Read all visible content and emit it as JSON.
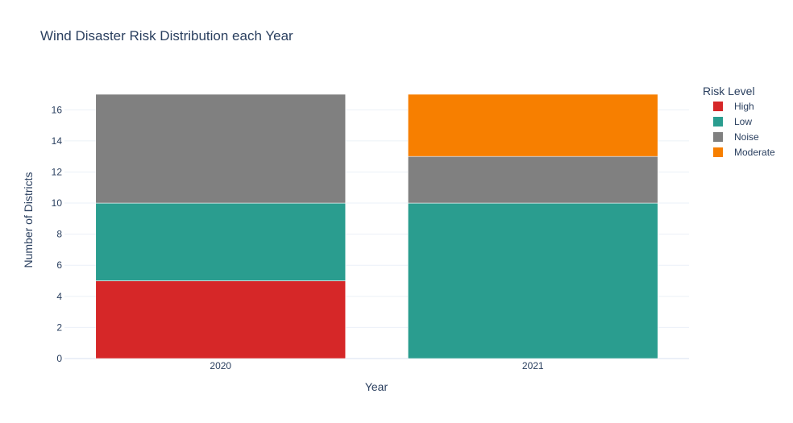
{
  "chart_data": {
    "type": "bar",
    "barmode": "stack",
    "title": "Wind Disaster Risk Distribution each Year",
    "xlabel": "Year",
    "ylabel": "Number of Districts",
    "categories": [
      "2020",
      "2021"
    ],
    "ylim": [
      0,
      17
    ],
    "yticks": [
      0,
      2,
      4,
      6,
      8,
      10,
      12,
      14,
      16
    ],
    "grid": true,
    "legend": {
      "title": "Risk Level",
      "placement": "top-right"
    },
    "series": [
      {
        "name": "High",
        "color": "#d62728",
        "values": [
          5,
          0
        ]
      },
      {
        "name": "Low",
        "color": "#2a9d8f",
        "values": [
          5,
          10
        ]
      },
      {
        "name": "Noise",
        "color": "#808080",
        "values": [
          7,
          3
        ]
      },
      {
        "name": "Moderate",
        "color": "#f77f00",
        "values": [
          0,
          4
        ]
      }
    ]
  }
}
